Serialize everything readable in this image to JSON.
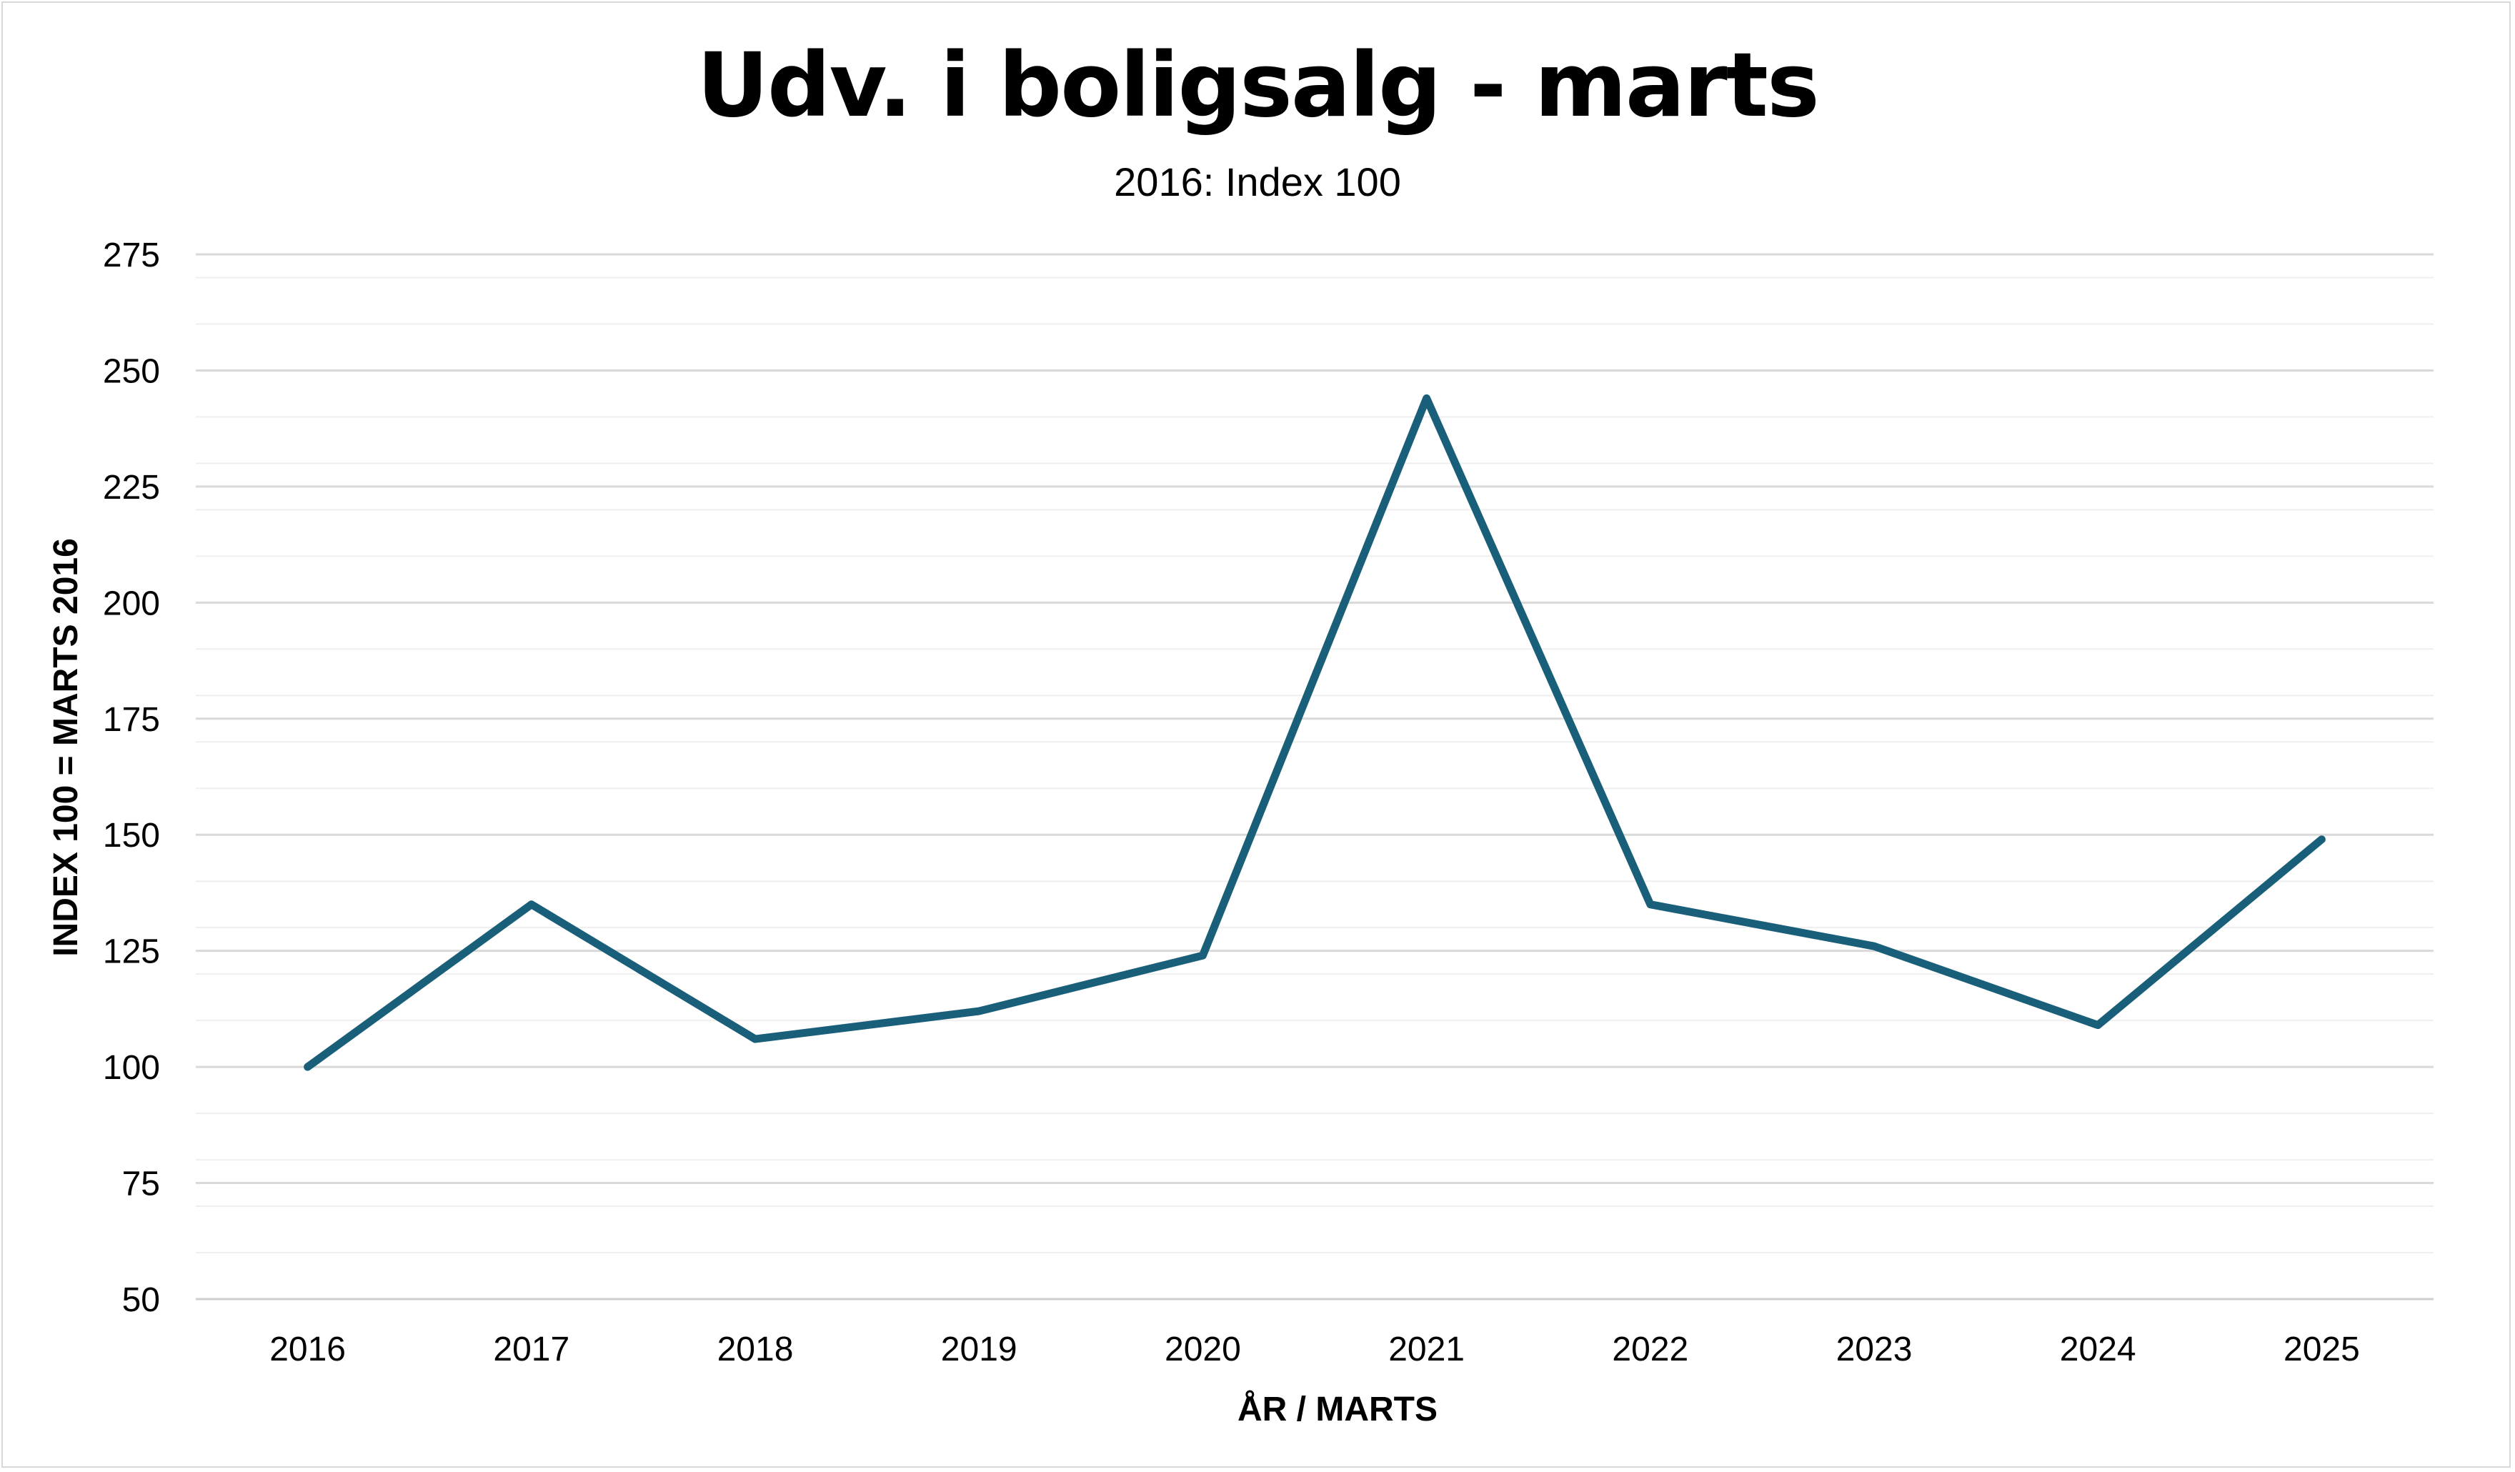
{
  "chart_data": {
    "type": "line",
    "title": "Udv. i boligsalg - marts",
    "subtitle": "2016: Index 100",
    "xlabel": "ÅR / MARTS",
    "ylabel": "INDEX 100 = MARTS 2016",
    "categories": [
      "2016",
      "2017",
      "2018",
      "2019",
      "2020",
      "2021",
      "2022",
      "2023",
      "2024",
      "2025"
    ],
    "series": [
      {
        "values": [
          100,
          135,
          106,
          112,
          124,
          244,
          135,
          126,
          109,
          149
        ],
        "color": "#1a5f7a"
      }
    ],
    "ylim": [
      50,
      275
    ],
    "yticks": [
      50,
      75,
      100,
      125,
      150,
      175,
      200,
      225,
      250,
      275
    ],
    "minor_grid_step": 10,
    "grid": true,
    "legend": "none"
  }
}
